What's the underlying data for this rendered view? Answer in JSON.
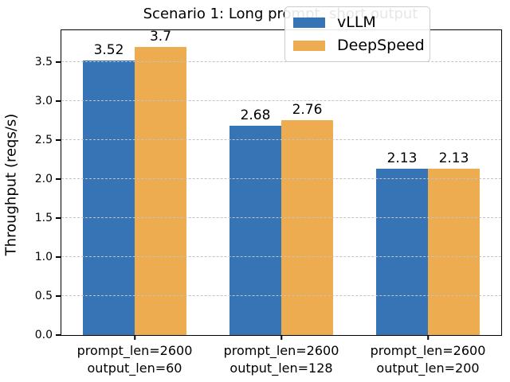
{
  "chart_data": {
    "type": "bar",
    "title": "Scenario 1: Long prompt, short output",
    "ylabel": "Throughput (reqs/s)",
    "xlabel": "",
    "categories": [
      [
        "prompt_len=2600",
        "output_len=60"
      ],
      [
        "prompt_len=2600",
        "output_len=128"
      ],
      [
        "prompt_len=2600",
        "output_len=200"
      ]
    ],
    "series": [
      {
        "name": "vLLM",
        "color": "#3674b5",
        "values": [
          3.52,
          2.68,
          2.13
        ],
        "labels": [
          "3.52",
          "2.68",
          "2.13"
        ]
      },
      {
        "name": "DeepSpeed",
        "color": "#edac50",
        "values": [
          3.7,
          2.76,
          2.13
        ],
        "labels": [
          "3.7",
          "2.76",
          "2.13"
        ]
      }
    ],
    "ylim": [
      0,
      3.91
    ],
    "yticks": [
      "0.0",
      "0.5",
      "1.0",
      "1.5",
      "2.0",
      "2.5",
      "3.0",
      "3.5"
    ],
    "grid": "horizontal dashed gridlines drawn above bars",
    "legend_position": "upper right",
    "colors": {
      "grid": "#c3c3c3",
      "spine": "#000000",
      "background": "#ffffff"
    }
  }
}
